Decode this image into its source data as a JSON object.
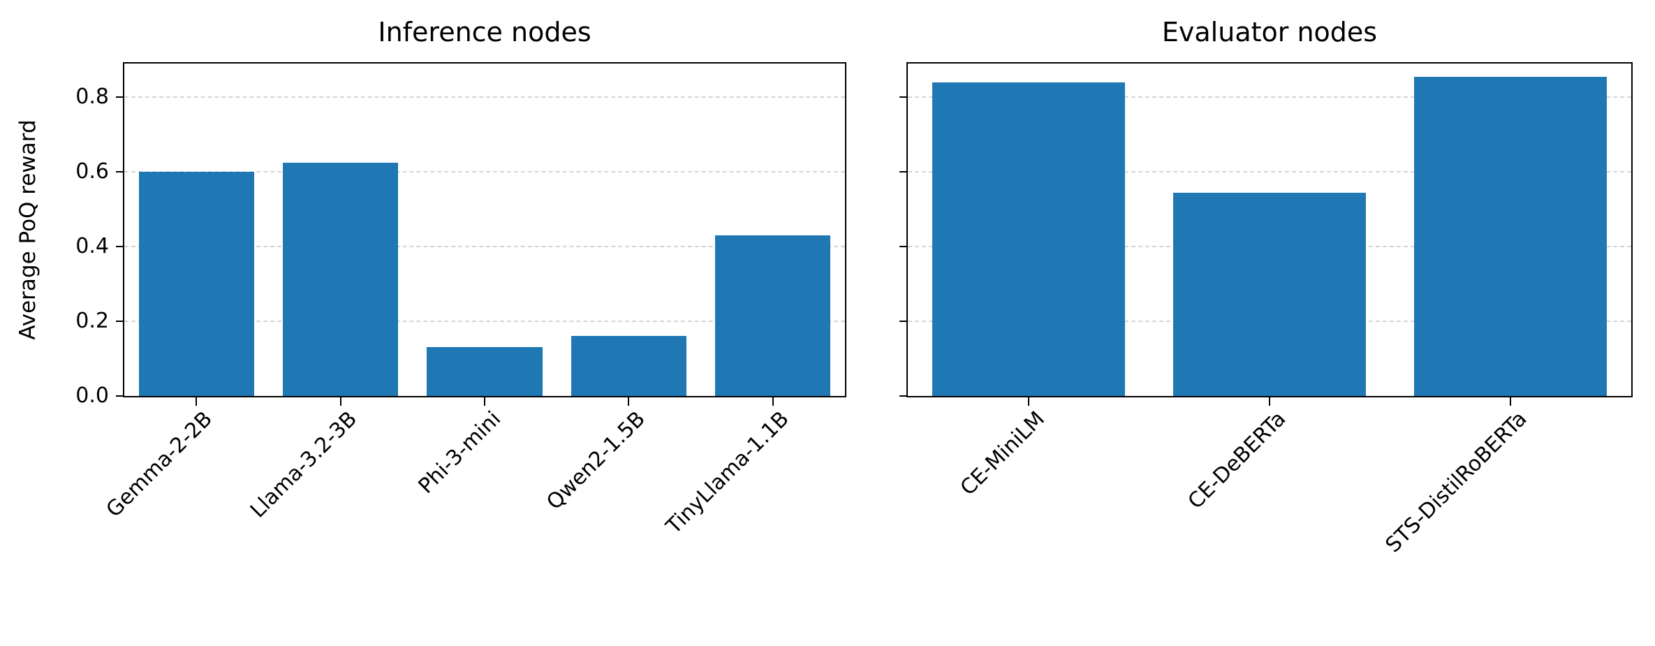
{
  "figure": {
    "background": "#ffffff",
    "grid_color": "#d5d5d5",
    "spine_color": "#000000"
  },
  "chart_data": [
    {
      "type": "bar",
      "title": "Inference nodes",
      "categories": [
        "Gemma-2-2B",
        "Llama-3.2-3B",
        "Phi-3-mini",
        "Qwen2-1.5B",
        "TinyLlama-1.1B"
      ],
      "values": [
        0.6,
        0.625,
        0.13,
        0.16,
        0.43
      ],
      "xlabel": "",
      "ylabel": "Average PoQ reward",
      "ylim": [
        0,
        0.89
      ],
      "yticks": [
        0.0,
        0.2,
        0.4,
        0.6,
        0.8
      ],
      "ytick_labels": [
        "0.0",
        "0.2",
        "0.4",
        "0.6",
        "0.8"
      ],
      "grid": true,
      "grid_style": "dashed",
      "legend": "none",
      "bar_color": "#1f77b4",
      "show_ytick_labels": true,
      "xtick_rotation": 45
    },
    {
      "type": "bar",
      "title": "Evaluator nodes",
      "categories": [
        "CE-MiniLM",
        "CE-DeBERTa",
        "STS-DistilRoBERTa"
      ],
      "values": [
        0.84,
        0.545,
        0.855
      ],
      "xlabel": "",
      "ylabel": "",
      "ylim": [
        0,
        0.89
      ],
      "yticks": [
        0.0,
        0.2,
        0.4,
        0.6,
        0.8
      ],
      "ytick_labels": [],
      "grid": true,
      "grid_style": "dashed",
      "legend": "none",
      "bar_color": "#1f77b4",
      "show_ytick_labels": false,
      "xtick_rotation": 45
    }
  ]
}
